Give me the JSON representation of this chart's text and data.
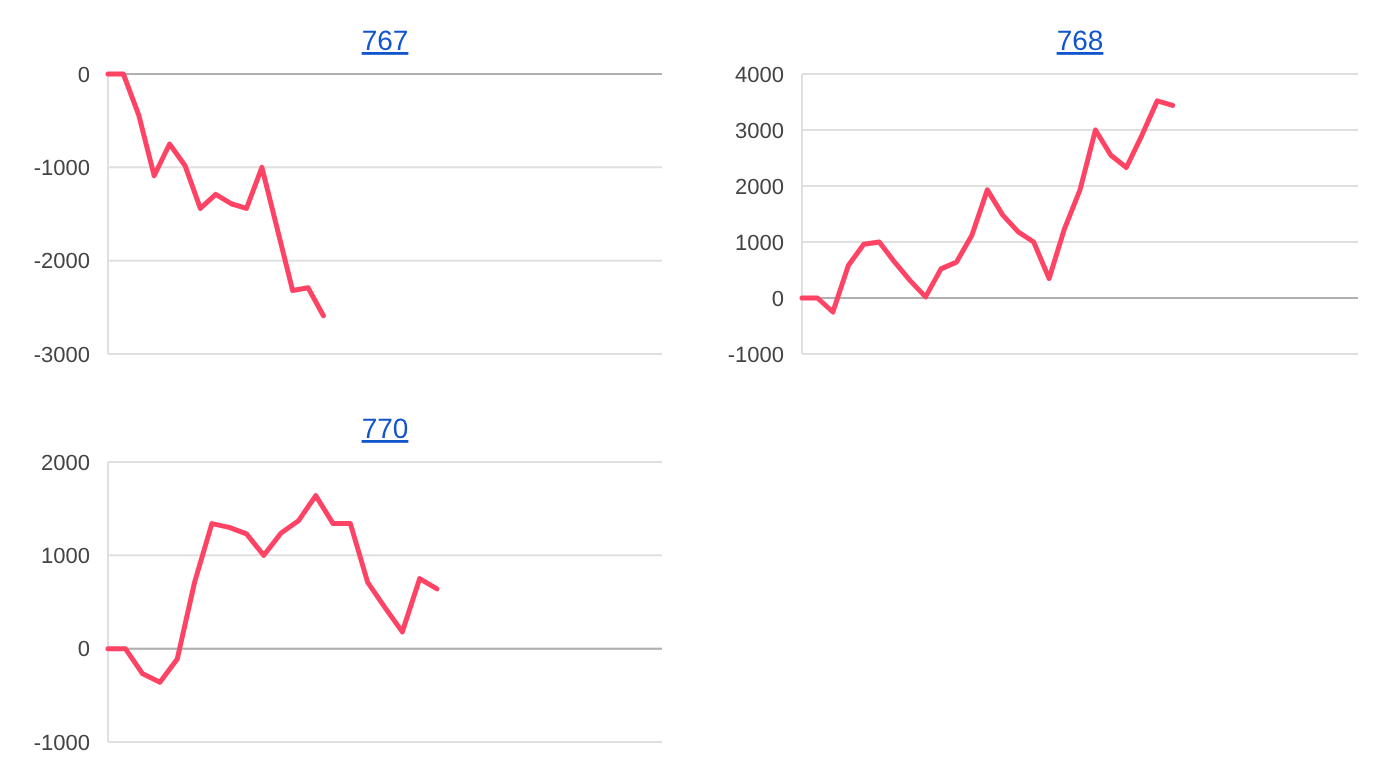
{
  "chart_data": [
    {
      "type": "line",
      "title": "767",
      "categories": [
        null,
        null,
        null,
        null,
        null,
        null,
        null,
        null,
        null,
        null,
        null,
        null,
        null,
        null,
        null,
        null,
        null,
        null,
        null,
        null,
        null,
        null,
        null,
        null,
        null,
        null,
        null,
        null,
        null,
        null,
        null,
        null,
        null,
        null,
        null,
        null,
        null
      ],
      "values": [
        0,
        0,
        -440,
        -1090,
        -750,
        -980,
        -1440,
        -1290,
        -1390,
        -1440,
        -1000,
        -1660,
        -2320,
        -2290,
        -2590,
        null,
        null,
        null,
        null,
        null,
        null,
        null,
        null,
        null,
        null,
        null,
        null,
        null,
        null,
        null,
        null,
        null,
        null,
        null,
        null,
        null,
        null
      ],
      "color": "#fe4365",
      "ylim": [
        -3000,
        0
      ],
      "yticks": [
        -3000,
        -2000,
        -1000,
        0
      ],
      "grid": "y"
    },
    {
      "type": "line",
      "title": "768",
      "categories": [
        null,
        null,
        null,
        null,
        null,
        null,
        null,
        null,
        null,
        null,
        null,
        null,
        null,
        null,
        null,
        null,
        null,
        null,
        null,
        null,
        null,
        null,
        null,
        null,
        null,
        null,
        null,
        null,
        null,
        null,
        null,
        null,
        null,
        null,
        null,
        null,
        null
      ],
      "values": [
        0,
        0,
        -250,
        580,
        960,
        1000,
        640,
        310,
        20,
        520,
        640,
        1120,
        1930,
        1480,
        1180,
        1000,
        350,
        1240,
        1930,
        3000,
        2550,
        2330,
        2900,
        3520,
        3440,
        null,
        null,
        null,
        null,
        null,
        null,
        null,
        null,
        null,
        null,
        null,
        null
      ],
      "color": "#fe4365",
      "ylim": [
        -1000,
        4000
      ],
      "yticks": [
        -1000,
        0,
        1000,
        2000,
        3000,
        4000
      ],
      "grid": "y"
    },
    {
      "type": "line",
      "title": "770",
      "categories": [
        null,
        null,
        null,
        null,
        null,
        null,
        null,
        null,
        null,
        null,
        null,
        null,
        null,
        null,
        null,
        null,
        null,
        null,
        null,
        null,
        null,
        null,
        null,
        null,
        null,
        null,
        null,
        null,
        null,
        null,
        null,
        null,
        null
      ],
      "values": [
        0,
        0,
        -270,
        -360,
        -110,
        710,
        1340,
        1300,
        1230,
        1000,
        1240,
        1370,
        1640,
        1340,
        1340,
        710,
        440,
        180,
        750,
        640,
        null,
        null,
        null,
        null,
        null,
        null,
        null,
        null,
        null,
        null,
        null,
        null,
        null
      ],
      "color": "#fe4365",
      "ylim": [
        -1000,
        2000
      ],
      "yticks": [
        -1000,
        0,
        1000,
        2000
      ],
      "grid": "y"
    }
  ]
}
